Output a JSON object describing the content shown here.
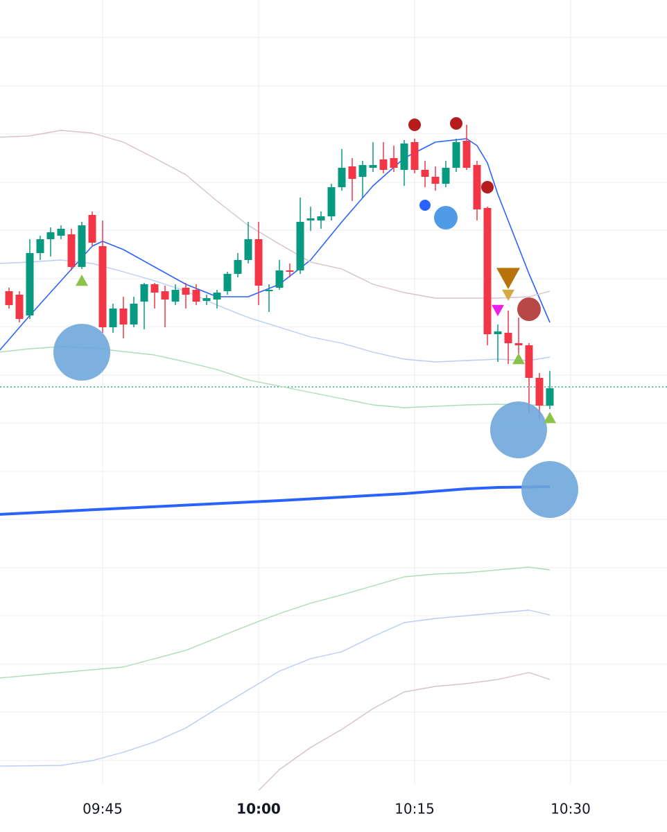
{
  "chart_data": {
    "type": "candlestick",
    "up_color": "#089981",
    "down_color": "#f23645",
    "xlim": [
      -9.867,
      54.267
    ],
    "ylim": [
      70,
      1200
    ],
    "xticks": [
      {
        "value": 0,
        "label": "09:45"
      },
      {
        "value": 15,
        "label": "10:00",
        "bold": true
      },
      {
        "value": 30,
        "label": "10:15"
      },
      {
        "value": 45,
        "label": "10:30"
      }
    ],
    "yticks": [
      1146,
      1076,
      1007,
      937,
      868,
      798,
      729,
      659,
      590,
      520,
      451,
      381,
      312,
      242,
      173,
      103
    ],
    "grid": true,
    "x": [
      -9,
      -8,
      -7,
      -6,
      -5,
      -4,
      -3,
      -2,
      -1,
      0,
      1,
      2,
      3,
      4,
      5,
      6,
      7,
      8,
      9,
      10,
      11,
      12,
      13,
      14,
      15,
      16,
      17,
      18,
      19,
      20,
      21,
      22,
      23,
      24,
      25,
      26,
      27,
      28,
      29,
      30,
      31,
      32,
      33,
      34,
      35,
      36,
      37,
      38,
      39,
      40,
      41,
      42,
      43
    ],
    "open": [
      780,
      775,
      745,
      835,
      855,
      860,
      862,
      815,
      890,
      845,
      728,
      755,
      732,
      765,
      790,
      780,
      765,
      785,
      782,
      766,
      768,
      780,
      805,
      825,
      855,
      780,
      785,
      810,
      810,
      882,
      882,
      888,
      930,
      960,
      945,
      958,
      970,
      972,
      955,
      995,
      955,
      945,
      935,
      958,
      997,
      962,
      900,
      718,
      720,
      705,
      702,
      655,
      615
    ],
    "high": [
      785,
      780,
      855,
      860,
      872,
      875,
      870,
      880,
      895,
      882,
      762,
      772,
      772,
      792,
      792,
      788,
      790,
      792,
      790,
      775,
      782,
      808,
      835,
      880,
      880,
      790,
      825,
      820,
      915,
      902,
      895,
      935,
      985,
      972,
      968,
      995,
      995,
      990,
      998,
      1000,
      968,
      960,
      968,
      1000,
      1020,
      968,
      902,
      732,
      752,
      742,
      705,
      662,
      665
    ],
    "low": [
      755,
      735,
      740,
      825,
      830,
      855,
      810,
      812,
      845,
      720,
      720,
      712,
      728,
      725,
      755,
      728,
      760,
      755,
      760,
      760,
      755,
      775,
      800,
      820,
      760,
      750,
      782,
      800,
      805,
      867,
      870,
      882,
      925,
      910,
      915,
      952,
      950,
      952,
      932,
      950,
      930,
      925,
      930,
      952,
      955,
      882,
      702,
      678,
      675,
      675,
      605,
      595,
      610
    ],
    "close": [
      760,
      740,
      835,
      855,
      865,
      870,
      815,
      875,
      850,
      728,
      755,
      732,
      762,
      790,
      778,
      768,
      782,
      775,
      765,
      770,
      778,
      805,
      825,
      855,
      788,
      782,
      810,
      808,
      880,
      885,
      888,
      930,
      958,
      942,
      962,
      962,
      955,
      958,
      993,
      955,
      945,
      935,
      958,
      995,
      958,
      898,
      718,
      722,
      705,
      702,
      655,
      615,
      640
    ],
    "price_line": 642,
    "price_line_color": "#089981",
    "lines": [
      {
        "color": "#2962ff",
        "width": 1.6,
        "x": [
          -10,
          -7,
          -4,
          -1,
          0,
          2,
          5,
          8,
          11,
          14,
          17,
          20,
          23,
          26,
          29,
          32,
          35,
          36,
          37,
          38,
          41,
          43
        ],
        "values": [
          693,
          745,
          795,
          845,
          852,
          840,
          815,
          790,
          772,
          772,
          790,
          825,
          880,
          932,
          972,
          995,
          1000,
          990,
          965,
          920,
          805,
          735
        ]
      },
      {
        "color": "#d8bfd0",
        "width": 1.4,
        "x": [
          -10,
          -7,
          -4,
          -1,
          2,
          5,
          8,
          11,
          14,
          17,
          20,
          23,
          26,
          29,
          32,
          35,
          38,
          41,
          43
        ],
        "values": [
          1002,
          1004,
          1012,
          1008,
          995,
          972,
          948,
          910,
          875,
          848,
          822,
          812,
          790,
          778,
          770,
          770,
          770,
          772,
          780
        ]
      },
      {
        "color": "#b9cbf5",
        "width": 1.4,
        "x": [
          -10,
          -7,
          -4,
          -1,
          2,
          5,
          8,
          11,
          14,
          17,
          20,
          23,
          26,
          29,
          32,
          35,
          38,
          41,
          43
        ],
        "values": [
          820,
          822,
          825,
          820,
          808,
          795,
          780,
          760,
          742,
          728,
          714,
          705,
          692,
          682,
          678,
          680,
          682,
          680,
          685
        ]
      },
      {
        "color": "#abdcb3",
        "width": 1.4,
        "x": [
          -10,
          -7,
          -4,
          -1,
          2,
          5,
          8,
          11,
          14,
          17,
          20,
          23,
          26,
          29,
          32,
          35,
          38,
          41,
          43
        ],
        "values": [
          692,
          697,
          700,
          698,
          693,
          688,
          678,
          667,
          652,
          643,
          634,
          625,
          616,
          612,
          614,
          616,
          617,
          616,
          615
        ]
      },
      {
        "color": "#2962ff",
        "width": 4,
        "x": [
          -10,
          2,
          17,
          29,
          35,
          38,
          43
        ],
        "values": [
          458,
          467,
          478,
          488,
          495,
          497,
          498
        ]
      },
      {
        "color": "#abdcb3",
        "width": 1.4,
        "x": [
          -10,
          -4,
          2,
          5,
          8,
          11,
          14,
          17,
          20,
          23,
          26,
          29,
          32,
          35,
          38,
          41,
          43
        ],
        "values": [
          222,
          230,
          238,
          250,
          262,
          280,
          298,
          315,
          330,
          342,
          355,
          368,
          372,
          374,
          378,
          382,
          378
        ]
      },
      {
        "color": "#b9cbf5",
        "width": 1.4,
        "x": [
          -10,
          -4,
          -1,
          2,
          5,
          8,
          11,
          14,
          17,
          20,
          23,
          26,
          29,
          32,
          35,
          38,
          41,
          43
        ],
        "values": [
          95,
          96,
          103,
          115,
          130,
          150,
          178,
          205,
          232,
          250,
          260,
          282,
          302,
          308,
          312,
          316,
          320,
          313
        ]
      },
      {
        "color": "#d8bfd0",
        "width": 1.4,
        "x": [
          15,
          17,
          20,
          23,
          26,
          29,
          32,
          35,
          38,
          41,
          43
        ],
        "values": [
          60,
          90,
          122,
          148,
          178,
          202,
          210,
          214,
          220,
          230,
          220
        ]
      }
    ],
    "markers": [
      {
        "shape": "circle",
        "x": 30,
        "y": 1020,
        "size": 9,
        "color": "#b71c1c"
      },
      {
        "shape": "circle",
        "x": 34,
        "y": 1022,
        "size": 9,
        "color": "#b71c1c"
      },
      {
        "shape": "circle",
        "x": 37,
        "y": 930,
        "size": 9,
        "color": "#b71c1c"
      },
      {
        "shape": "circle",
        "x": 31,
        "y": 904,
        "size": 8,
        "color": "#2962ff"
      },
      {
        "shape": "circle",
        "x": 33,
        "y": 886,
        "size": 17,
        "color": "#4f9be6"
      },
      {
        "shape": "circle",
        "x": -2,
        "y": 692,
        "size": 41,
        "color": "#6fa7dc"
      },
      {
        "shape": "circle",
        "x": 40,
        "y": 580,
        "size": 41,
        "color": "#6fa7dc"
      },
      {
        "shape": "circle",
        "x": 43,
        "y": 494,
        "size": 41,
        "color": "#6fa7dc"
      },
      {
        "shape": "circle",
        "x": 41,
        "y": 754,
        "size": 17,
        "color": "#b84848"
      },
      {
        "shape": "triangle-up",
        "x": -2,
        "y": 795,
        "size": 9,
        "color": "#8bc34a"
      },
      {
        "shape": "triangle-up",
        "x": 40,
        "y": 682,
        "size": 9,
        "color": "#8bc34a"
      },
      {
        "shape": "triangle-up",
        "x": 43,
        "y": 597,
        "size": 9,
        "color": "#8bc34a"
      },
      {
        "shape": "triangle-down",
        "x": 39,
        "y": 800,
        "size": 17,
        "color": "#b8720c"
      },
      {
        "shape": "triangle-down",
        "x": 39,
        "y": 775,
        "size": 9,
        "color": "#d4a843"
      },
      {
        "shape": "triangle-down",
        "x": 38,
        "y": 753,
        "size": 9,
        "color": "#e91ee8"
      }
    ]
  }
}
